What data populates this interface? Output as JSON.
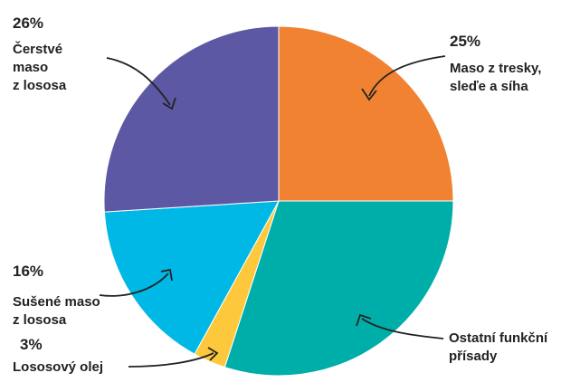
{
  "chart_data": {
    "type": "pie",
    "categories": [
      "Maso z tresky,\nsleďe a síha",
      "Ostatní funkční\npřísady",
      "Lososový olej",
      "Sušené maso\nz lososa",
      "Čerstvé\nmaso\nz lososa"
    ],
    "values": [
      25,
      30,
      3,
      16,
      26
    ],
    "value_labels": [
      "25%",
      null,
      "3%",
      "16%",
      "26%"
    ],
    "colors": [
      "#f08231",
      "#00aea9",
      "#fdc83b",
      "#00b8e6",
      "#5c58a4"
    ]
  }
}
